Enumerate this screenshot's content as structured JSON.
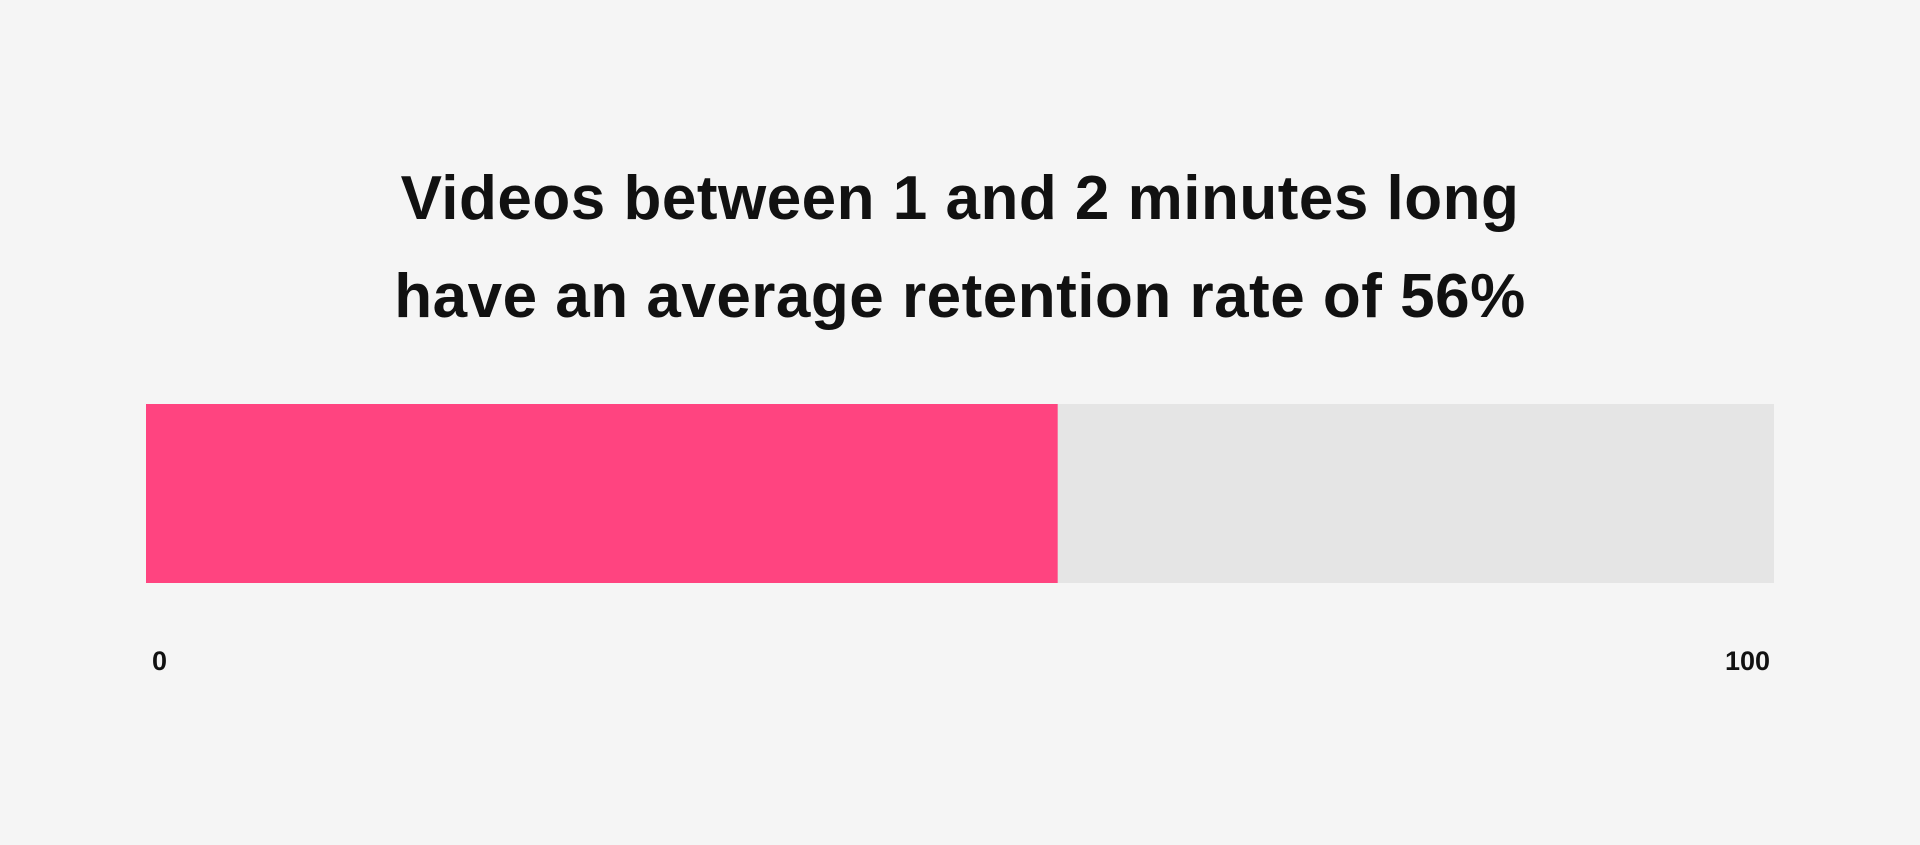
{
  "chart_data": {
    "type": "bar",
    "title_lines": [
      "Videos between 1 and 2 minutes long",
      "have an average retention rate of 56%"
    ],
    "values": [
      56
    ],
    "xlim": [
      0,
      100
    ],
    "tick_labels": [
      "0",
      "100"
    ],
    "grid": false,
    "colors": {
      "fill": "#ff4480",
      "track": "#e5e5e5",
      "background": "#f5f5f5"
    }
  }
}
